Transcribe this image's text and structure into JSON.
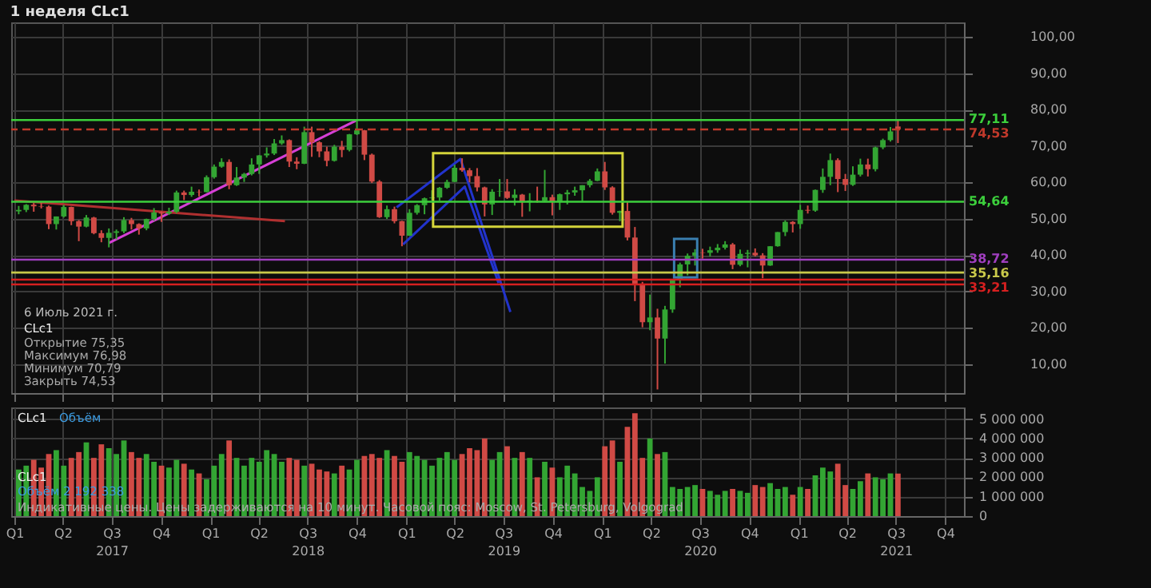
{
  "chart_data": [
    {
      "type": "candlestick",
      "title": "1 неделя CLc1",
      "x": [
        "2017-01-09",
        "2017-01-23",
        "2017-02-06",
        "2017-02-20",
        "2017-03-06",
        "2017-03-20",
        "2017-04-03",
        "2017-04-17",
        "2017-05-01",
        "2017-05-15",
        "2017-05-29",
        "2017-06-12",
        "2017-06-26",
        "2017-07-10",
        "2017-07-24",
        "2017-08-07",
        "2017-08-21",
        "2017-09-04",
        "2017-09-18",
        "2017-10-02",
        "2017-10-16",
        "2017-10-30",
        "2017-11-13",
        "2017-11-27",
        "2017-12-11",
        "2017-12-25",
        "2018-01-08",
        "2018-01-22",
        "2018-02-05",
        "2018-02-19",
        "2018-03-05",
        "2018-03-19",
        "2018-04-02",
        "2018-04-16",
        "2018-04-30",
        "2018-05-14",
        "2018-05-28",
        "2018-06-11",
        "2018-06-25",
        "2018-07-09",
        "2018-07-23",
        "2018-08-06",
        "2018-08-20",
        "2018-09-03",
        "2018-09-17",
        "2018-10-01",
        "2018-10-15",
        "2018-10-29",
        "2018-11-12",
        "2018-11-26",
        "2018-12-10",
        "2018-12-24",
        "2019-01-07",
        "2019-01-21",
        "2019-02-04",
        "2019-02-18",
        "2019-03-04",
        "2019-03-18",
        "2019-04-01",
        "2019-04-15",
        "2019-04-29",
        "2019-05-13",
        "2019-05-27",
        "2019-06-10",
        "2019-06-24",
        "2019-07-08",
        "2019-07-22",
        "2019-08-05",
        "2019-08-19",
        "2019-09-02",
        "2019-09-16",
        "2019-09-30",
        "2019-10-14",
        "2019-10-28",
        "2019-11-11",
        "2019-11-25",
        "2019-12-09",
        "2019-12-23",
        "2020-01-06",
        "2020-01-20",
        "2020-02-03",
        "2020-02-17",
        "2020-03-02",
        "2020-03-16",
        "2020-03-30",
        "2020-04-13",
        "2020-04-27",
        "2020-05-11",
        "2020-05-25",
        "2020-06-08",
        "2020-06-22",
        "2020-07-06",
        "2020-07-20",
        "2020-08-03",
        "2020-08-17",
        "2020-08-31",
        "2020-09-14",
        "2020-09-28",
        "2020-10-12",
        "2020-10-26",
        "2020-11-09",
        "2020-11-23",
        "2020-12-07",
        "2020-12-21",
        "2021-01-04",
        "2021-01-18",
        "2021-02-01",
        "2021-02-15",
        "2021-03-01",
        "2021-03-15",
        "2021-03-29",
        "2021-04-12",
        "2021-04-26",
        "2021-05-10",
        "2021-05-24",
        "2021-06-07",
        "2021-06-21",
        "2021-07-05"
      ],
      "ohlc": [
        [
          52.0,
          53.5,
          51.2,
          52.4
        ],
        [
          52.4,
          54.0,
          51.8,
          53.8
        ],
        [
          53.8,
          54.3,
          51.9,
          53.4
        ],
        [
          53.4,
          54.6,
          52.8,
          53.3
        ],
        [
          53.3,
          53.6,
          47.1,
          48.5
        ],
        [
          48.5,
          50.6,
          47.0,
          50.6
        ],
        [
          50.6,
          53.8,
          50.3,
          53.2
        ],
        [
          53.2,
          53.3,
          48.2,
          49.3
        ],
        [
          49.3,
          49.6,
          43.8,
          47.8
        ],
        [
          47.8,
          51.0,
          47.6,
          50.3
        ],
        [
          50.3,
          50.5,
          45.7,
          46.0
        ],
        [
          46.0,
          46.8,
          43.5,
          44.7
        ],
        [
          44.7,
          47.3,
          42.1,
          46.1
        ],
        [
          46.1,
          47.0,
          44.3,
          46.5
        ],
        [
          46.5,
          50.4,
          46.0,
          49.6
        ],
        [
          49.6,
          50.2,
          47.0,
          48.5
        ],
        [
          48.5,
          48.7,
          45.6,
          47.3
        ],
        [
          47.3,
          50.0,
          46.8,
          49.9
        ],
        [
          49.9,
          52.9,
          49.4,
          51.7
        ],
        [
          51.7,
          52.0,
          49.1,
          51.4
        ],
        [
          51.4,
          53.0,
          51.0,
          51.9
        ],
        [
          51.9,
          57.7,
          51.5,
          57.2
        ],
        [
          57.2,
          57.7,
          55.1,
          56.5
        ],
        [
          56.5,
          58.8,
          56.0,
          57.4
        ],
        [
          57.4,
          58.0,
          56.1,
          57.3
        ],
        [
          57.3,
          61.9,
          57.2,
          61.4
        ],
        [
          61.4,
          64.9,
          61.0,
          64.3
        ],
        [
          64.3,
          66.6,
          64.0,
          65.6
        ],
        [
          65.6,
          66.3,
          58.1,
          59.2
        ],
        [
          59.2,
          64.2,
          59.0,
          61.3
        ],
        [
          61.3,
          62.6,
          60.1,
          62.3
        ],
        [
          62.3,
          66.6,
          61.9,
          64.9
        ],
        [
          64.9,
          67.5,
          62.3,
          67.4
        ],
        [
          67.4,
          69.6,
          66.8,
          67.9
        ],
        [
          67.9,
          71.9,
          67.5,
          70.7
        ],
        [
          70.7,
          72.9,
          70.3,
          71.6
        ],
        [
          71.6,
          71.8,
          64.2,
          65.7
        ],
        [
          65.7,
          66.9,
          63.6,
          65.1
        ],
        [
          65.1,
          75.3,
          65.0,
          73.8
        ],
        [
          73.8,
          75.3,
          67.0,
          71.0
        ],
        [
          71.0,
          71.3,
          66.9,
          68.5
        ],
        [
          68.5,
          69.8,
          64.4,
          65.9
        ],
        [
          65.9,
          70.3,
          65.7,
          69.8
        ],
        [
          69.8,
          71.4,
          66.9,
          68.9
        ],
        [
          68.9,
          73.3,
          68.5,
          73.2
        ],
        [
          73.2,
          77.1,
          73.0,
          74.3
        ],
        [
          74.3,
          74.4,
          66.1,
          67.6
        ],
        [
          67.6,
          67.9,
          59.8,
          60.2
        ],
        [
          60.2,
          60.6,
          50.2,
          50.4
        ],
        [
          50.4,
          53.6,
          49.9,
          52.6
        ],
        [
          52.6,
          53.3,
          48.7,
          49.3
        ],
        [
          49.3,
          49.4,
          42.4,
          45.3
        ],
        [
          45.3,
          52.6,
          45.2,
          51.6
        ],
        [
          51.6,
          54.0,
          51.1,
          53.7
        ],
        [
          53.7,
          55.8,
          51.2,
          55.6
        ],
        [
          55.6,
          57.8,
          55.0,
          55.8
        ],
        [
          55.8,
          58.7,
          55.0,
          58.5
        ],
        [
          58.5,
          60.7,
          58.2,
          60.1
        ],
        [
          60.1,
          64.8,
          60.0,
          64.0
        ],
        [
          64.0,
          66.6,
          62.9,
          63.3
        ],
        [
          63.3,
          63.9,
          60.0,
          61.7
        ],
        [
          61.7,
          63.9,
          57.5,
          58.6
        ],
        [
          58.6,
          58.8,
          50.6,
          53.9
        ],
        [
          53.9,
          58.1,
          51.0,
          57.4
        ],
        [
          57.4,
          60.9,
          56.0,
          57.5
        ],
        [
          57.5,
          60.9,
          55.4,
          55.7
        ],
        [
          55.7,
          58.1,
          53.6,
          56.6
        ],
        [
          56.6,
          56.8,
          50.5,
          54.5
        ],
        [
          54.5,
          57.0,
          52.0,
          55.0
        ],
        [
          55.0,
          58.8,
          54.4,
          54.9
        ],
        [
          54.9,
          63.4,
          54.7,
          55.9
        ],
        [
          55.9,
          56.6,
          50.9,
          54.7
        ],
        [
          54.7,
          56.9,
          52.4,
          56.7
        ],
        [
          56.7,
          57.9,
          53.9,
          57.2
        ],
        [
          57.2,
          58.8,
          56.3,
          57.8
        ],
        [
          57.8,
          59.2,
          54.8,
          59.2
        ],
        [
          59.2,
          60.9,
          58.6,
          60.4
        ],
        [
          60.4,
          63.8,
          60.3,
          63.0
        ],
        [
          63.0,
          65.6,
          57.9,
          58.6
        ],
        [
          58.6,
          58.9,
          51.1,
          51.6
        ],
        [
          51.6,
          52.2,
          49.3,
          52.1
        ],
        [
          52.1,
          54.5,
          44.0,
          44.8
        ],
        [
          44.8,
          47.7,
          27.3,
          31.7
        ],
        [
          31.7,
          32.6,
          20.1,
          21.5
        ],
        [
          21.5,
          29.1,
          19.3,
          22.8
        ],
        [
          22.8,
          25.2,
          3.0,
          17.0
        ],
        [
          17.0,
          26.0,
          10.1,
          25.0
        ],
        [
          25.0,
          33.4,
          24.1,
          33.3
        ],
        [
          33.3,
          37.9,
          31.1,
          37.4
        ],
        [
          37.4,
          40.4,
          34.4,
          39.8
        ],
        [
          39.8,
          41.6,
          37.1,
          40.7
        ],
        [
          40.7,
          41.7,
          39.0,
          40.6
        ],
        [
          40.6,
          42.3,
          39.6,
          41.3
        ],
        [
          41.3,
          43.0,
          40.6,
          42.0
        ],
        [
          42.0,
          43.8,
          41.5,
          42.9
        ],
        [
          42.9,
          43.3,
          36.1,
          37.3
        ],
        [
          37.3,
          41.5,
          36.9,
          40.3
        ],
        [
          40.3,
          41.4,
          36.6,
          40.6
        ],
        [
          40.6,
          41.8,
          39.6,
          39.9
        ],
        [
          39.9,
          40.5,
          33.6,
          37.1
        ],
        [
          37.1,
          42.4,
          37.0,
          42.4
        ],
        [
          42.4,
          46.3,
          42.3,
          46.3
        ],
        [
          46.3,
          49.5,
          45.2,
          49.1
        ],
        [
          49.1,
          49.3,
          46.2,
          48.5
        ],
        [
          48.5,
          53.8,
          47.2,
          52.4
        ],
        [
          52.4,
          53.6,
          51.4,
          52.2
        ],
        [
          52.2,
          58.0,
          51.9,
          57.9
        ],
        [
          57.9,
          63.8,
          57.1,
          61.5
        ],
        [
          61.5,
          67.9,
          59.2,
          66.1
        ],
        [
          66.1,
          66.6,
          57.3,
          60.9
        ],
        [
          60.9,
          62.3,
          57.6,
          59.3
        ],
        [
          59.3,
          64.4,
          59.0,
          62.1
        ],
        [
          62.1,
          66.5,
          61.6,
          64.9
        ],
        [
          64.9,
          66.5,
          61.6,
          63.6
        ],
        [
          63.6,
          69.8,
          63.0,
          69.6
        ],
        [
          69.6,
          72.0,
          69.1,
          71.6
        ],
        [
          71.6,
          75.2,
          71.2,
          74.0
        ],
        [
          75.35,
          76.98,
          70.79,
          74.53
        ]
      ],
      "colors": [
        "#33a533",
        "#33a533",
        "#d04a45",
        "#d04a45",
        "#d04a45",
        "#33a533",
        "#33a533",
        "#d04a45",
        "#d04a45",
        "#33a533",
        "#d04a45",
        "#d04a45",
        "#33a533",
        "#33a533",
        "#33a533",
        "#d04a45",
        "#d04a45",
        "#33a533",
        "#33a533",
        "#d04a45",
        "#33a533",
        "#33a533",
        "#d04a45",
        "#33a533",
        "#d04a45",
        "#33a533",
        "#33a533",
        "#33a533",
        "#d04a45",
        "#33a533",
        "#33a533",
        "#33a533",
        "#33a533",
        "#33a533",
        "#33a533",
        "#33a533",
        "#d04a45",
        "#d04a45",
        "#33a533",
        "#d04a45",
        "#d04a45",
        "#d04a45",
        "#33a533",
        "#d04a45",
        "#33a533",
        "#33a533",
        "#d04a45",
        "#d04a45",
        "#d04a45",
        "#33a533",
        "#d04a45",
        "#d04a45",
        "#33a533",
        "#33a533",
        "#33a533",
        "#33a533",
        "#33a533",
        "#33a533",
        "#33a533",
        "#d04a45",
        "#d04a45",
        "#d04a45",
        "#d04a45",
        "#33a533",
        "#33a533",
        "#d04a45",
        "#33a533",
        "#d04a45",
        "#33a533",
        "#d04a45",
        "#33a533",
        "#d04a45",
        "#33a533",
        "#33a533",
        "#33a533",
        "#33a533",
        "#33a533",
        "#33a533",
        "#d04a45",
        "#d04a45",
        "#33a533",
        "#d04a45",
        "#d04a45",
        "#d04a45",
        "#33a533",
        "#d04a45",
        "#33a533",
        "#33a533",
        "#33a533",
        "#33a533",
        "#33a533",
        "#d04a45",
        "#33a533",
        "#33a533",
        "#33a533",
        "#d04a45",
        "#33a533",
        "#33a533",
        "#d04a45",
        "#d04a45",
        "#33a533",
        "#33a533",
        "#33a533",
        "#d04a45",
        "#33a533",
        "#d04a45",
        "#33a533",
        "#33a533",
        "#33a533",
        "#d04a45",
        "#d04a45",
        "#33a533",
        "#33a533",
        "#d04a45",
        "#33a533",
        "#33a533",
        "#33a533",
        "#d04a45"
      ],
      "series": [
        {
          "type": "line",
          "color": "#d63fd6",
          "x": [
            "2017-06-26",
            "2018-10-01"
          ],
          "values": [
            43.3,
            77.1
          ]
        },
        {
          "type": "line",
          "color": "#b03030",
          "x": [
            "2017-01-01",
            "2018-05-20"
          ],
          "values": [
            55.0,
            49.3
          ]
        },
        {
          "type": "line",
          "color": "#2233cc",
          "x": [
            "2018-12-14",
            "2019-04-12",
            "2019-07-14"
          ],
          "values": [
            53.1,
            66.4,
            24.3
          ]
        },
        {
          "type": "line",
          "color": "#2233cc",
          "x": [
            "2018-12-26",
            "2019-04-20",
            "2019-06-22"
          ],
          "values": [
            42.9,
            58.8,
            32.3
          ]
        }
      ],
      "ref_lines": [
        {
          "axis": "y",
          "value": 77.11,
          "label": "77,11",
          "color": "#3ccf3c"
        },
        {
          "axis": "y",
          "value": 74.53,
          "label": "74,53",
          "color": "#c0392b",
          "line_style": "dashed"
        },
        {
          "axis": "y",
          "value": 54.64,
          "label": "54,64",
          "color": "#3ccf3c"
        },
        {
          "axis": "y",
          "value": 38.72,
          "label": "38,72",
          "color": "#a03fbf"
        },
        {
          "axis": "y",
          "value": 35.16,
          "label": "35,16",
          "color": "#c8c84a"
        },
        {
          "axis": "y",
          "value": 33.21,
          "label": "33,21",
          "color": "#d62020"
        },
        {
          "axis": "y",
          "value": 31.9,
          "color": "#d62020"
        }
      ],
      "annotations": [
        "6 Июль 2021 г.",
        "CLc1",
        "Открытие 75,35",
        "Максимум 76,98",
        "Минимум 70,79",
        "Закрыть 74,53"
      ],
      "xlim": [
        "2016-12-26",
        "2021-11-05"
      ],
      "ylim": [
        2,
        104
      ],
      "yticks": [
        {
          "value": 10,
          "label": "10,00"
        },
        {
          "value": 20,
          "label": "20,00"
        },
        {
          "value": 30,
          "label": "30,00"
        },
        {
          "value": 40,
          "label": "40,00"
        },
        {
          "value": 50,
          "label": "50,00"
        },
        {
          "value": 60,
          "label": "60,00"
        },
        {
          "value": 70,
          "label": "70,00"
        },
        {
          "value": 80,
          "label": "80,00"
        },
        {
          "value": 90,
          "label": "90,00"
        },
        {
          "value": 100,
          "label": "100,00"
        }
      ],
      "grid": true,
      "tick_labels": "y"
    },
    {
      "type": "bar",
      "x": [
        "2017-01-09",
        "2017-01-23",
        "2017-02-06",
        "2017-02-20",
        "2017-03-06",
        "2017-03-20",
        "2017-04-03",
        "2017-04-17",
        "2017-05-01",
        "2017-05-15",
        "2017-05-29",
        "2017-06-12",
        "2017-06-26",
        "2017-07-10",
        "2017-07-24",
        "2017-08-07",
        "2017-08-21",
        "2017-09-04",
        "2017-09-18",
        "2017-10-02",
        "2017-10-16",
        "2017-10-30",
        "2017-11-13",
        "2017-11-27",
        "2017-12-11",
        "2017-12-25",
        "2018-01-08",
        "2018-01-22",
        "2018-02-05",
        "2018-02-19",
        "2018-03-05",
        "2018-03-19",
        "2018-04-02",
        "2018-04-16",
        "2018-04-30",
        "2018-05-14",
        "2018-05-28",
        "2018-06-11",
        "2018-06-25",
        "2018-07-09",
        "2018-07-23",
        "2018-08-06",
        "2018-08-20",
        "2018-09-03",
        "2018-09-17",
        "2018-10-01",
        "2018-10-15",
        "2018-10-29",
        "2018-11-12",
        "2018-11-26",
        "2018-12-10",
        "2018-12-24",
        "2019-01-07",
        "2019-01-21",
        "2019-02-04",
        "2019-02-18",
        "2019-03-04",
        "2019-03-18",
        "2019-04-01",
        "2019-04-15",
        "2019-04-29",
        "2019-05-13",
        "2019-05-27",
        "2019-06-10",
        "2019-06-24",
        "2019-07-08",
        "2019-07-22",
        "2019-08-05",
        "2019-08-19",
        "2019-09-02",
        "2019-09-16",
        "2019-09-30",
        "2019-10-14",
        "2019-10-28",
        "2019-11-11",
        "2019-11-25",
        "2019-12-09",
        "2019-12-23",
        "2020-01-06",
        "2020-01-20",
        "2020-02-03",
        "2020-02-17",
        "2020-03-02",
        "2020-03-16",
        "2020-03-30",
        "2020-04-13",
        "2020-04-27",
        "2020-05-11",
        "2020-05-25",
        "2020-06-08",
        "2020-06-22",
        "2020-07-06",
        "2020-07-20",
        "2020-08-03",
        "2020-08-17",
        "2020-08-31",
        "2020-09-14",
        "2020-09-28",
        "2020-10-12",
        "2020-10-26",
        "2020-11-09",
        "2020-11-23",
        "2020-12-07",
        "2020-12-21",
        "2021-01-04",
        "2021-01-18",
        "2021-02-01",
        "2021-02-15",
        "2021-03-01",
        "2021-03-15",
        "2021-03-29",
        "2021-04-12",
        "2021-04-26",
        "2021-05-10",
        "2021-05-24",
        "2021-06-07",
        "2021-06-21",
        "2021-07-05"
      ],
      "values": [
        2400000,
        2600000,
        2900000,
        2500000,
        3200000,
        3400000,
        2600000,
        3000000,
        3300000,
        3800000,
        3000000,
        3700000,
        3500000,
        3200000,
        3900000,
        3300000,
        3000000,
        3200000,
        2800000,
        2600000,
        2500000,
        2900000,
        2700000,
        2400000,
        2200000,
        1900000,
        2600000,
        3200000,
        3900000,
        3000000,
        2600000,
        3000000,
        2800000,
        3400000,
        3200000,
        2800000,
        3000000,
        2900000,
        2600000,
        2700000,
        2400000,
        2300000,
        2200000,
        2600000,
        2400000,
        2900000,
        3100000,
        3200000,
        3000000,
        3400000,
        3100000,
        2800000,
        3300000,
        3100000,
        2900000,
        2600000,
        3000000,
        3300000,
        2900000,
        3200000,
        3500000,
        3400000,
        4000000,
        2900000,
        3300000,
        3600000,
        3000000,
        3300000,
        3000000,
        2000000,
        2800000,
        2500000,
        2000000,
        2600000,
        2200000,
        1500000,
        1300000,
        2000000,
        3600000,
        3900000,
        2800000,
        4600000,
        5300000,
        3000000,
        4000000,
        3200000,
        3300000,
        1500000,
        1400000,
        1500000,
        1600000,
        1400000,
        1300000,
        1100000,
        1300000,
        1400000,
        1300000,
        1200000,
        1600000,
        1500000,
        1700000,
        1400000,
        1500000,
        1100000,
        1500000,
        1400000,
        2100000,
        2500000,
        2300000,
        2700000,
        1600000,
        1400000,
        1800000,
        2200000,
        2000000,
        1900000,
        2200000,
        2192338
      ],
      "colors": [
        "#33a533",
        "#33a533",
        "#d04a45",
        "#d04a45",
        "#d04a45",
        "#33a533",
        "#33a533",
        "#d04a45",
        "#d04a45",
        "#33a533",
        "#d04a45",
        "#d04a45",
        "#33a533",
        "#33a533",
        "#33a533",
        "#d04a45",
        "#d04a45",
        "#33a533",
        "#33a533",
        "#d04a45",
        "#33a533",
        "#33a533",
        "#d04a45",
        "#33a533",
        "#d04a45",
        "#33a533",
        "#33a533",
        "#33a533",
        "#d04a45",
        "#33a533",
        "#33a533",
        "#33a533",
        "#33a533",
        "#33a533",
        "#33a533",
        "#33a533",
        "#d04a45",
        "#d04a45",
        "#33a533",
        "#d04a45",
        "#d04a45",
        "#d04a45",
        "#33a533",
        "#d04a45",
        "#33a533",
        "#33a533",
        "#d04a45",
        "#d04a45",
        "#d04a45",
        "#33a533",
        "#d04a45",
        "#d04a45",
        "#33a533",
        "#33a533",
        "#33a533",
        "#33a533",
        "#33a533",
        "#33a533",
        "#33a533",
        "#d04a45",
        "#d04a45",
        "#d04a45",
        "#d04a45",
        "#33a533",
        "#33a533",
        "#d04a45",
        "#33a533",
        "#d04a45",
        "#33a533",
        "#d04a45",
        "#33a533",
        "#d04a45",
        "#33a533",
        "#33a533",
        "#33a533",
        "#33a533",
        "#33a533",
        "#33a533",
        "#d04a45",
        "#d04a45",
        "#33a533",
        "#d04a45",
        "#d04a45",
        "#d04a45",
        "#33a533",
        "#d04a45",
        "#33a533",
        "#33a533",
        "#33a533",
        "#33a533",
        "#33a533",
        "#d04a45",
        "#33a533",
        "#33a533",
        "#33a533",
        "#d04a45",
        "#33a533",
        "#33a533",
        "#d04a45",
        "#d04a45",
        "#33a533",
        "#33a533",
        "#33a533",
        "#d04a45",
        "#33a533",
        "#d04a45",
        "#33a533",
        "#33a533",
        "#33a533",
        "#d04a45",
        "#d04a45",
        "#33a533",
        "#33a533",
        "#d04a45",
        "#33a533",
        "#33a533",
        "#33a533",
        "#d04a45"
      ],
      "annotations": [
        "CLc1",
        "Объём",
        "CLc1",
        "Объём 2 192 338",
        "Индикативные цены. Цены задерживаются на 10 минут. Часовой пояс: Moscow, St. Petersburg, Volgograd"
      ],
      "xlim": [
        "2016-12-26",
        "2021-11-05"
      ],
      "xticks": [
        {
          "value": "2017-01-01",
          "label": "Q1"
        },
        {
          "value": "2017-04-01",
          "label": "Q2"
        },
        {
          "value": "2017-07-01",
          "label": "Q3\n2017"
        },
        {
          "value": "2017-10-01",
          "label": "Q4"
        },
        {
          "value": "2018-01-01",
          "label": "Q1"
        },
        {
          "value": "2018-04-01",
          "label": "Q2"
        },
        {
          "value": "2018-07-01",
          "label": "Q3\n2018"
        },
        {
          "value": "2018-10-01",
          "label": "Q4"
        },
        {
          "value": "2019-01-01",
          "label": "Q1"
        },
        {
          "value": "2019-04-01",
          "label": "Q2"
        },
        {
          "value": "2019-07-01",
          "label": "Q3\n2019"
        },
        {
          "value": "2019-10-01",
          "label": "Q4"
        },
        {
          "value": "2020-01-01",
          "label": "Q1"
        },
        {
          "value": "2020-04-01",
          "label": "Q2"
        },
        {
          "value": "2020-07-01",
          "label": "Q3\n2020"
        },
        {
          "value": "2020-10-01",
          "label": "Q4"
        },
        {
          "value": "2021-01-01",
          "label": "Q1"
        },
        {
          "value": "2021-04-01",
          "label": "Q2"
        },
        {
          "value": "2021-07-01",
          "label": "Q3\n2021"
        },
        {
          "value": "2021-10-01",
          "label": "Q4"
        }
      ],
      "ylim": [
        0,
        5600000
      ],
      "yticks": [
        0,
        {
          "value": 1000000,
          "label": "1 000 000"
        },
        {
          "value": 2000000,
          "label": "2 000 000"
        },
        {
          "value": 3000000,
          "label": "3 000 000"
        },
        {
          "value": 4000000,
          "label": "4 000 000"
        },
        {
          "value": 5000000,
          "label": "5 000 000"
        }
      ],
      "grid": true
    }
  ]
}
